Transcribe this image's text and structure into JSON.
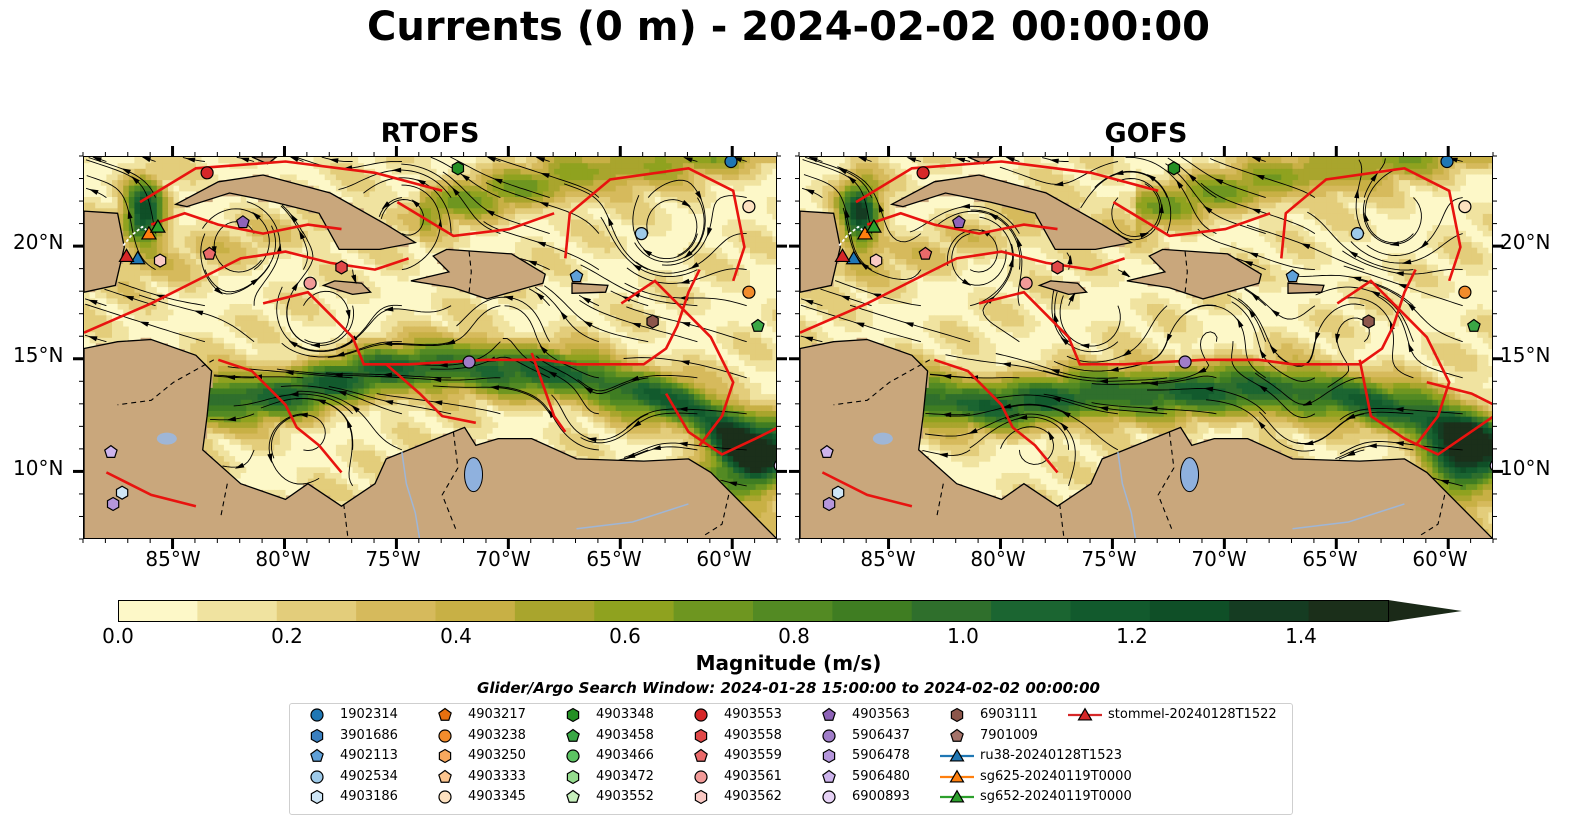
{
  "figure": {
    "title": "Currents (0 m) - 2024-02-02 00:00:00",
    "panels": [
      {
        "title": "RTOFS"
      },
      {
        "title": "GOFS"
      }
    ],
    "ytick_labels": [
      "20°N",
      "15°N",
      "10°N"
    ],
    "xtick_labels": [
      "85°W",
      "80°W",
      "75°W",
      "70°W",
      "65°W",
      "60°W"
    ],
    "colorbar": {
      "label": "Magnitude (m/s)",
      "tick_labels": [
        "0.0",
        "0.2",
        "0.4",
        "0.6",
        "0.8",
        "1.0",
        "1.2",
        "1.4"
      ],
      "colors": [
        "#fdf8c8",
        "#f0e3a0",
        "#e3cd7b",
        "#d6ba5c",
        "#c8b045",
        "#a9a52d",
        "#8fa21f",
        "#6e9620",
        "#538a23",
        "#3f7d22",
        "#2f6f2c",
        "#1b6531",
        "#125a2d",
        "#0f4f27",
        "#153c22",
        "#1b2f1a"
      ]
    },
    "search_window": "Glider/Argo Search Window: 2024-01-28 15:00:00 to 2024-02-02 00:00:00",
    "legend": [
      {
        "label": "1902314",
        "marker": "circle",
        "color": "#1f77b4"
      },
      {
        "label": "3901686",
        "marker": "hexagon",
        "color": "#3a7fbf"
      },
      {
        "label": "4902113",
        "marker": "pentagon",
        "color": "#5fa0d8"
      },
      {
        "label": "4902534",
        "marker": "circle",
        "color": "#9ecae9"
      },
      {
        "label": "4903186",
        "marker": "hexagon",
        "color": "#cfe6f6"
      },
      {
        "label": "4903217",
        "marker": "pentagon",
        "color": "#e6700f"
      },
      {
        "label": "4903238",
        "marker": "circle",
        "color": "#f28c2c"
      },
      {
        "label": "4903250",
        "marker": "hexagon",
        "color": "#f8a95e"
      },
      {
        "label": "4903333",
        "marker": "pentagon",
        "color": "#fcc58f"
      },
      {
        "label": "4903345",
        "marker": "circle",
        "color": "#fde1c0"
      },
      {
        "label": "4903348",
        "marker": "hexagon",
        "color": "#248f24"
      },
      {
        "label": "4903458",
        "marker": "pentagon",
        "color": "#3aa745"
      },
      {
        "label": "4903466",
        "marker": "circle",
        "color": "#5cc462"
      },
      {
        "label": "4903472",
        "marker": "hexagon",
        "color": "#95dc8e"
      },
      {
        "label": "4903552",
        "marker": "pentagon",
        "color": "#c7f0bd"
      },
      {
        "label": "4903553",
        "marker": "circle",
        "color": "#d62728"
      },
      {
        "label": "4903558",
        "marker": "hexagon",
        "color": "#e04848"
      },
      {
        "label": "4903559",
        "marker": "pentagon",
        "color": "#ea6a6a"
      },
      {
        "label": "4903561",
        "marker": "circle",
        "color": "#f29a98"
      },
      {
        "label": "4903562",
        "marker": "hexagon",
        "color": "#f9c9c4"
      },
      {
        "label": "4903563",
        "marker": "pentagon",
        "color": "#8e63b8"
      },
      {
        "label": "5906437",
        "marker": "circle",
        "color": "#a07dc8"
      },
      {
        "label": "5906478",
        "marker": "hexagon",
        "color": "#b596db"
      },
      {
        "label": "5906480",
        "marker": "pentagon",
        "color": "#cdb4ec"
      },
      {
        "label": "6900893",
        "marker": "circle",
        "color": "#e6d2f5"
      },
      {
        "label": "6903111",
        "marker": "hexagon",
        "color": "#8c564b"
      },
      {
        "label": "7901009",
        "marker": "pentagon",
        "color": "#a5736a"
      },
      {
        "label": "ru38-20240128T1523",
        "marker": "triangle-line",
        "color": "#1f77b4"
      },
      {
        "label": "sg625-20240119T0000",
        "marker": "triangle-line",
        "color": "#ff7f0e"
      },
      {
        "label": "sg652-20240119T0000",
        "marker": "triangle-line",
        "color": "#2ca02c"
      },
      {
        "label": "stommel-20240128T1522",
        "marker": "triangle-line",
        "color": "#d62728"
      }
    ]
  },
  "chart_data": [
    {
      "type": "heatmap",
      "title": "RTOFS",
      "x_ticks_deg_w": [
        85,
        80,
        75,
        70,
        65,
        60
      ],
      "y_ticks_deg_n": [
        20,
        15,
        10
      ],
      "lon_range": [
        -89,
        -58
      ],
      "lat_range": [
        7,
        24
      ],
      "colorbar_range": [
        0,
        1.5
      ],
      "colorbar_extend": "max",
      "fields": [
        "current magnitude (m/s)",
        "streamlines"
      ],
      "jet_axis": [
        [
          -86,
          13
        ],
        [
          -80,
          13.5
        ],
        [
          -76,
          14.5
        ],
        [
          -72,
          14.8
        ],
        [
          -67,
          14.3
        ],
        [
          -62,
          13
        ],
        [
          -59,
          11
        ]
      ],
      "floats": [
        {
          "id": "1902314",
          "lon": -60.1,
          "lat": 23.8
        },
        {
          "id": "4902534",
          "lon": -64.1,
          "lat": 20.6
        },
        {
          "id": "4902113",
          "lon": -67.0,
          "lat": 18.7
        },
        {
          "id": "4903238",
          "lon": -59.3,
          "lat": 18.0
        },
        {
          "id": "4903458",
          "lon": -58.9,
          "lat": 16.5
        },
        {
          "id": "4903345",
          "lon": -59.3,
          "lat": 21.8
        },
        {
          "id": "4903348",
          "lon": -72.3,
          "lat": 23.5
        },
        {
          "id": "4903553",
          "lon": -83.5,
          "lat": 23.3
        },
        {
          "id": "4903563",
          "lon": -81.9,
          "lat": 21.1
        },
        {
          "id": "4903559",
          "lon": -83.4,
          "lat": 19.7
        },
        {
          "id": "4903562",
          "lon": -85.6,
          "lat": 19.4
        },
        {
          "id": "4903558",
          "lon": -77.5,
          "lat": 19.1
        },
        {
          "id": "4903561",
          "lon": -78.9,
          "lat": 18.4
        },
        {
          "id": "6903111",
          "lon": -63.6,
          "lat": 16.7
        },
        {
          "id": "5906437",
          "lon": -71.8,
          "lat": 14.9
        },
        {
          "id": "5906480",
          "lon": -87.8,
          "lat": 10.9
        },
        {
          "id": "4903186",
          "lon": -87.3,
          "lat": 9.1
        },
        {
          "id": "5906478",
          "lon": -87.7,
          "lat": 8.6
        },
        {
          "id": "6900893",
          "lon": -57.9,
          "lat": 10.3
        }
      ],
      "gliders": [
        {
          "id": "ru38-20240128T1523",
          "lon": -86.6,
          "lat": 19.5
        },
        {
          "id": "sg625-20240119T0000",
          "lon": -86.1,
          "lat": 20.6
        },
        {
          "id": "sg652-20240119T0000",
          "lon": -85.7,
          "lat": 20.9
        },
        {
          "id": "stommel-20240128T1522",
          "lon": -87.1,
          "lat": 19.6
        }
      ]
    },
    {
      "type": "heatmap",
      "title": "GOFS",
      "x_ticks_deg_w": [
        85,
        80,
        75,
        70,
        65,
        60
      ],
      "y_ticks_deg_n": [
        20,
        15,
        10
      ],
      "lon_range": [
        -89,
        -58
      ],
      "lat_range": [
        7,
        24
      ],
      "colorbar_range": [
        0,
        1.5
      ],
      "colorbar_extend": "max",
      "fields": [
        "current magnitude (m/s)",
        "streamlines"
      ],
      "jet_axis": [
        [
          -86,
          13.5
        ],
        [
          -80,
          13
        ],
        [
          -75,
          13.5
        ],
        [
          -70,
          13.7
        ],
        [
          -65,
          13.5
        ],
        [
          -61,
          12.5
        ],
        [
          -58,
          11
        ]
      ],
      "floats": [
        {
          "id": "1902314",
          "lon": -60.1,
          "lat": 23.8
        },
        {
          "id": "4902534",
          "lon": -64.1,
          "lat": 20.6
        },
        {
          "id": "4902113",
          "lon": -67.0,
          "lat": 18.7
        },
        {
          "id": "4903238",
          "lon": -59.3,
          "lat": 18.0
        },
        {
          "id": "4903458",
          "lon": -58.9,
          "lat": 16.5
        },
        {
          "id": "4903345",
          "lon": -59.3,
          "lat": 21.8
        },
        {
          "id": "4903348",
          "lon": -72.3,
          "lat": 23.5
        },
        {
          "id": "4903553",
          "lon": -83.5,
          "lat": 23.3
        },
        {
          "id": "4903563",
          "lon": -81.9,
          "lat": 21.1
        },
        {
          "id": "4903559",
          "lon": -83.4,
          "lat": 19.7
        },
        {
          "id": "4903562",
          "lon": -85.6,
          "lat": 19.4
        },
        {
          "id": "4903558",
          "lon": -77.5,
          "lat": 19.1
        },
        {
          "id": "4903561",
          "lon": -78.9,
          "lat": 18.4
        },
        {
          "id": "6903111",
          "lon": -63.6,
          "lat": 16.7
        },
        {
          "id": "5906437",
          "lon": -71.8,
          "lat": 14.9
        },
        {
          "id": "5906480",
          "lon": -87.8,
          "lat": 10.9
        },
        {
          "id": "4903186",
          "lon": -87.3,
          "lat": 9.1
        },
        {
          "id": "5906478",
          "lon": -87.7,
          "lat": 8.6
        },
        {
          "id": "6900893",
          "lon": -57.9,
          "lat": 10.3
        }
      ],
      "gliders": [
        {
          "id": "ru38-20240128T1523",
          "lon": -86.6,
          "lat": 19.5
        },
        {
          "id": "sg625-20240119T0000",
          "lon": -86.1,
          "lat": 20.6
        },
        {
          "id": "sg652-20240119T0000",
          "lon": -85.7,
          "lat": 20.9
        },
        {
          "id": "stommel-20240128T1522",
          "lon": -87.1,
          "lat": 19.6
        }
      ]
    }
  ]
}
